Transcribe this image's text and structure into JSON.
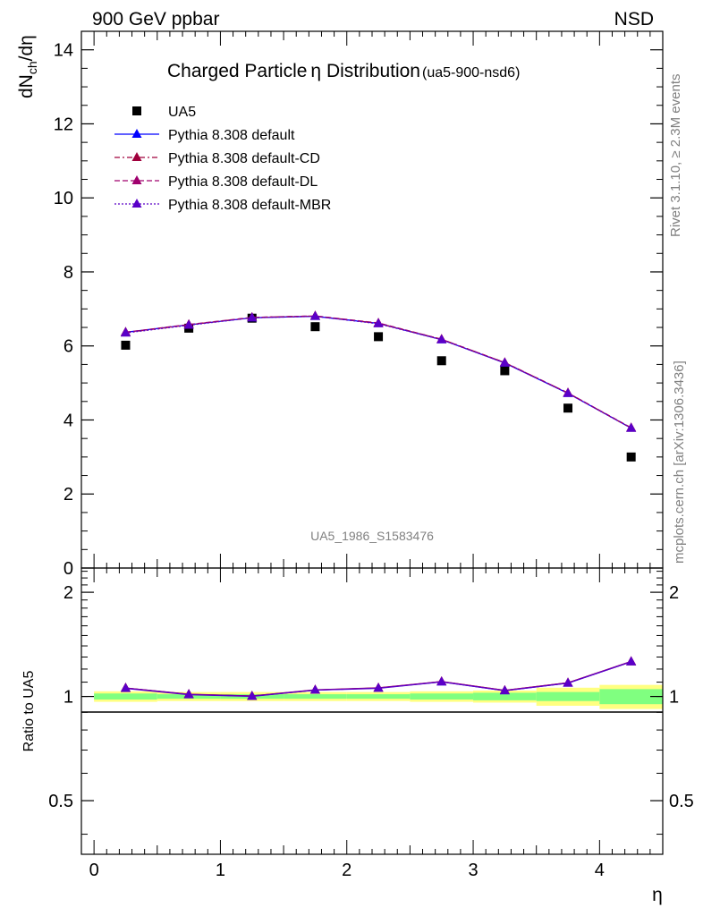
{
  "header": {
    "left": "900 GeV ppbar",
    "right": "NSD"
  },
  "title": {
    "main": "Charged Particle",
    "symbol": "η",
    "rest": " Distribution",
    "ref": "(ua5-900-nsd6)"
  },
  "side_labels": {
    "rivet": "Rivet 3.1.10, ≥ 2.3M events",
    "mcplots": "mcplots.cern.ch [arXiv:1306.3436]"
  },
  "watermark": "UA5_1986_S1583476",
  "colors": {
    "data": "#000000",
    "default": "#0000ff",
    "cd": "#a0003c",
    "dl": "#a0006e",
    "mbr": "#5a00c8",
    "band_yellow": "#ffff80",
    "band_green": "#80ff80"
  },
  "chart_data": [
    {
      "type": "line",
      "panel": "main",
      "xlabel": "η",
      "ylabel_main": "dN",
      "ylabel_sub": "ch",
      "ylabel_end": "/dη",
      "xlim": [
        -0.1,
        4.5
      ],
      "ylim": [
        0,
        14.5
      ],
      "yticks": [
        0,
        2,
        4,
        6,
        8,
        10,
        12,
        14
      ],
      "x": [
        0.25,
        0.75,
        1.25,
        1.75,
        2.25,
        2.75,
        3.25,
        3.75,
        4.25
      ],
      "series": [
        {
          "name": "UA5",
          "key": "data",
          "marker": "square",
          "values": [
            6.02,
            6.48,
            6.75,
            6.52,
            6.25,
            5.6,
            5.33,
            4.32,
            3.0
          ]
        },
        {
          "name": "Pythia 8.308 default",
          "key": "default",
          "marker": "triangle",
          "dash": "",
          "values": [
            6.37,
            6.57,
            6.76,
            6.8,
            6.61,
            6.17,
            5.54,
            4.72,
            3.78
          ]
        },
        {
          "name": "Pythia 8.308 default-CD",
          "key": "cd",
          "marker": "triangle",
          "dash": "6 3 2 3",
          "values": [
            6.36,
            6.57,
            6.77,
            6.81,
            6.61,
            6.18,
            5.55,
            4.73,
            3.78
          ]
        },
        {
          "name": "Pythia 8.308 default-DL",
          "key": "dl",
          "marker": "triangle",
          "dash": "6 3",
          "values": [
            6.37,
            6.58,
            6.77,
            6.81,
            6.62,
            6.18,
            5.55,
            4.73,
            3.79
          ]
        },
        {
          "name": "Pythia 8.308 default-MBR",
          "key": "mbr",
          "marker": "triangle",
          "dash": "2 2",
          "values": [
            6.35,
            6.56,
            6.76,
            6.8,
            6.6,
            6.17,
            5.54,
            4.72,
            3.78
          ]
        }
      ]
    },
    {
      "type": "line",
      "panel": "ratio",
      "xlabel": "η",
      "ylabel": "Ratio to UA5",
      "xlim": [
        -0.1,
        4.5
      ],
      "ylim": [
        0.35,
        2.35
      ],
      "yscale": "log",
      "yticks": [
        0.5,
        1,
        2
      ],
      "x": [
        0.25,
        0.75,
        1.25,
        1.75,
        2.25,
        2.75,
        3.25,
        3.75,
        4.25
      ],
      "xticks": [
        0,
        1,
        2,
        3,
        4
      ],
      "band_edges": [
        0,
        0.5,
        1,
        1.5,
        2,
        2.5,
        3,
        3.5,
        4,
        4.5
      ],
      "band_yellow": [
        0.035,
        0.03,
        0.03,
        0.03,
        0.03,
        0.035,
        0.04,
        0.06,
        0.08
      ],
      "band_green": [
        0.02,
        0.015,
        0.015,
        0.015,
        0.015,
        0.02,
        0.025,
        0.03,
        0.05
      ],
      "series": [
        {
          "name": "Pythia 8.308 default",
          "key": "default",
          "values": [
            1.058,
            1.014,
            1.002,
            1.043,
            1.058,
            1.102,
            1.039,
            1.093,
            1.26
          ]
        },
        {
          "name": "Pythia 8.308 default-CD",
          "key": "cd",
          "values": [
            1.057,
            1.014,
            1.003,
            1.044,
            1.058,
            1.104,
            1.041,
            1.095,
            1.26
          ]
        },
        {
          "name": "Pythia 8.308 default-DL",
          "key": "dl",
          "values": [
            1.058,
            1.015,
            1.003,
            1.045,
            1.059,
            1.104,
            1.041,
            1.095,
            1.263
          ]
        },
        {
          "name": "Pythia 8.308 default-MBR",
          "key": "mbr",
          "values": [
            1.055,
            1.012,
            1.001,
            1.043,
            1.056,
            1.102,
            1.039,
            1.093,
            1.26
          ]
        }
      ]
    }
  ]
}
